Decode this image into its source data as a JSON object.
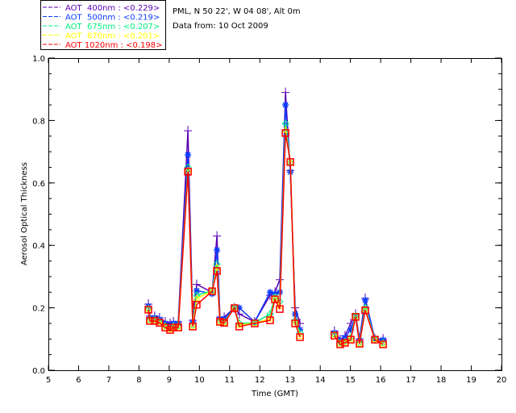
{
  "chart_data": {
    "type": "line",
    "header": {
      "site": "PML, N 50 22', W 04 08', Alt 0m",
      "date": "Data from: 10 Oct 2009"
    },
    "xlabel": "Time (GMT)",
    "ylabel": "Aerosol Optical Thickness",
    "xlim": [
      5,
      20
    ],
    "ylim": [
      0,
      1.0
    ],
    "xticks": [
      "5",
      "6",
      "7",
      "8",
      "9",
      "10",
      "11",
      "12",
      "13",
      "14",
      "15",
      "16",
      "17",
      "18",
      "19",
      "20"
    ],
    "yticks": [
      "0.0",
      "0.2",
      "0.4",
      "0.6",
      "0.8",
      "1.0"
    ],
    "legend_position": "top-left-outside",
    "x": [
      8.31,
      8.36,
      8.52,
      8.68,
      8.87,
      9.03,
      9.14,
      9.3,
      9.62,
      9.78,
      9.91,
      10.42,
      10.58,
      10.68,
      10.82,
      11.16,
      11.32,
      11.83,
      12.34,
      12.5,
      12.66,
      12.85,
      13.01,
      13.17,
      13.33,
      14.47,
      14.66,
      14.82,
      15.01,
      15.17,
      15.3,
      15.49,
      15.81,
      16.08
    ],
    "series": [
      {
        "name": "AOT  400nm",
        "mean": "<0.229>",
        "label": "AOT  400nm : <0.229>",
        "color": "#5b00b5",
        "marker": "plus",
        "values": [
          0.212,
          0.173,
          0.173,
          0.168,
          0.155,
          0.15,
          0.155,
          0.155,
          0.767,
          0.16,
          0.275,
          0.25,
          0.43,
          0.17,
          0.17,
          0.2,
          0.18,
          0.155,
          0.24,
          0.25,
          0.29,
          0.89,
          0.64,
          0.2,
          0.15,
          0.125,
          0.098,
          0.11,
          0.15,
          0.18,
          0.1,
          0.23,
          0.1,
          0.1
        ]
      },
      {
        "name": "AOT  500nm",
        "mean": "<0.219>",
        "label": "AOT  500nm : <0.219>",
        "color": "#0a3cff",
        "marker": "asterisk",
        "values": [
          0.205,
          0.168,
          0.168,
          0.163,
          0.15,
          0.145,
          0.15,
          0.15,
          0.69,
          0.155,
          0.255,
          0.245,
          0.385,
          0.165,
          0.165,
          0.2,
          0.2,
          0.155,
          0.25,
          0.245,
          0.25,
          0.85,
          0.635,
          0.18,
          0.13,
          0.12,
          0.095,
          0.105,
          0.13,
          0.175,
          0.095,
          0.225,
          0.1,
          0.097
        ]
      },
      {
        "name": "AOT  675nm",
        "mean": "<0.207>",
        "label": "AOT  675nm : <0.207>",
        "color": "#00f080",
        "marker": "diamond",
        "values": [
          0.198,
          0.162,
          0.162,
          0.156,
          0.142,
          0.134,
          0.142,
          0.142,
          0.65,
          0.145,
          0.24,
          0.255,
          0.34,
          0.158,
          0.155,
          0.2,
          0.15,
          0.152,
          0.18,
          0.235,
          0.22,
          0.79,
          0.665,
          0.16,
          0.12,
          0.115,
          0.088,
          0.092,
          0.105,
          0.175,
          0.088,
          0.2,
          0.1,
          0.088
        ]
      },
      {
        "name": "AOT  870nm",
        "mean": "<0.201>",
        "label": "AOT  870nm : <0.201>",
        "color": "#ffff00",
        "marker": "triangle",
        "values": [
          0.196,
          0.16,
          0.16,
          0.154,
          0.14,
          0.131,
          0.139,
          0.139,
          0.64,
          0.142,
          0.23,
          0.254,
          0.33,
          0.156,
          0.153,
          0.2,
          0.145,
          0.151,
          0.165,
          0.23,
          0.205,
          0.77,
          0.666,
          0.155,
          0.11,
          0.113,
          0.085,
          0.09,
          0.1,
          0.173,
          0.086,
          0.195,
          0.099,
          0.085
        ]
      },
      {
        "name": "AOT 1020nm",
        "mean": "<0.198>",
        "label": "AOT 1020nm : <0.198>",
        "color": "#ff0000",
        "marker": "square",
        "values": [
          0.194,
          0.158,
          0.158,
          0.152,
          0.137,
          0.129,
          0.137,
          0.137,
          0.636,
          0.14,
          0.21,
          0.253,
          0.318,
          0.155,
          0.152,
          0.199,
          0.14,
          0.15,
          0.16,
          0.227,
          0.196,
          0.76,
          0.667,
          0.15,
          0.106,
          0.111,
          0.083,
          0.088,
          0.098,
          0.171,
          0.085,
          0.192,
          0.098,
          0.083
        ]
      }
    ]
  }
}
